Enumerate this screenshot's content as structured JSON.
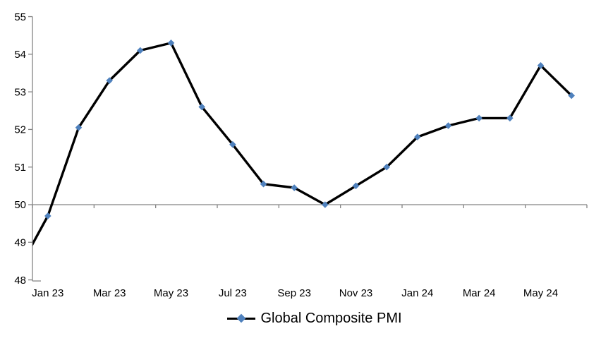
{
  "chart_data": {
    "type": "line",
    "title": "",
    "legend": {
      "label": "Global Composite PMI",
      "position": "bottom-center"
    },
    "categories": [
      "Dec 22",
      "Jan 23",
      "Feb 23",
      "Mar 23",
      "Apr 23",
      "May 23",
      "Jun 23",
      "Jul 23",
      "Aug 23",
      "Sep 23",
      "Oct 23",
      "Nov 23",
      "Dec 23",
      "Jan 24",
      "Feb 24",
      "Mar 24",
      "Apr 24",
      "May 24",
      "Jun 24"
    ],
    "series": [
      {
        "name": "Global Composite PMI",
        "values": [
          48.2,
          49.7,
          52.05,
          53.3,
          54.1,
          54.3,
          52.6,
          51.6,
          50.55,
          50.45,
          50.0,
          50.5,
          51.0,
          51.8,
          52.1,
          52.3,
          52.3,
          53.7,
          52.9
        ]
      }
    ],
    "first_point_clipped_at_left_axis": true,
    "x_tick_labels": [
      "Jan 23",
      "Mar 23",
      "May 23",
      "Jul 23",
      "Sep 23",
      "Nov 23",
      "Jan 24",
      "Mar 24",
      "May 24"
    ],
    "x_tick_label_interval_months": 2,
    "y_ticks": [
      48,
      49,
      50,
      51,
      52,
      53,
      54,
      55
    ],
    "ylim": [
      48,
      55
    ],
    "category_axis_crosses_at": 50,
    "grid": "off",
    "colors": {
      "line": "#000000",
      "marker": "#4F81BD",
      "axis": "#848484",
      "text": "#000000",
      "background": "#FFFFFF"
    }
  }
}
